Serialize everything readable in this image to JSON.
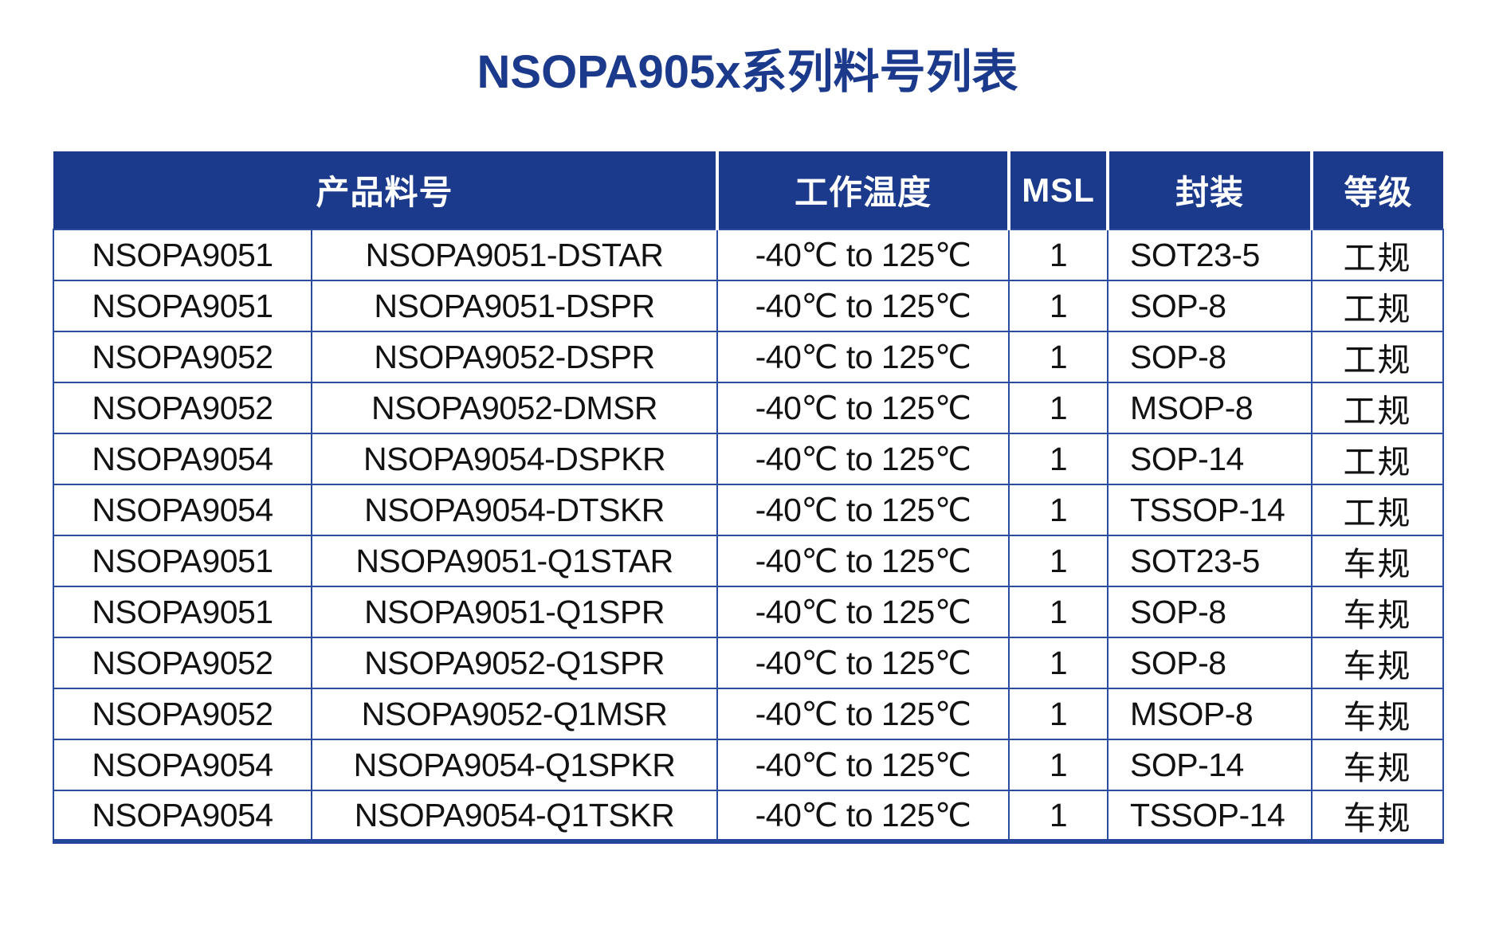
{
  "page": {
    "title": "NSOPA905x系列料号列表"
  },
  "colors": {
    "header_bg": "#1c3a8c",
    "border": "#2a4da0",
    "border_strong": "#24469c",
    "title": "#1c3a8c",
    "text": "#121212"
  },
  "table": {
    "headers": {
      "product": "产品料号",
      "temp": "工作温度",
      "msl": "MSL",
      "package": "封装",
      "grade": "等级"
    },
    "rows": [
      {
        "series": "NSOPA9051",
        "part": "NSOPA9051-DSTAR",
        "temp": "-40℃ to 125℃",
        "msl": "1",
        "package": "SOT23-5",
        "grade": "工规"
      },
      {
        "series": "NSOPA9051",
        "part": "NSOPA9051-DSPR",
        "temp": "-40℃ to 125℃",
        "msl": "1",
        "package": "SOP-8",
        "grade": "工规"
      },
      {
        "series": "NSOPA9052",
        "part": "NSOPA9052-DSPR",
        "temp": "-40℃ to 125℃",
        "msl": "1",
        "package": "SOP-8",
        "grade": "工规"
      },
      {
        "series": "NSOPA9052",
        "part": "NSOPA9052-DMSR",
        "temp": "-40℃ to 125℃",
        "msl": "1",
        "package": "MSOP-8",
        "grade": "工规"
      },
      {
        "series": "NSOPA9054",
        "part": "NSOPA9054-DSPKR",
        "temp": "-40℃ to 125℃",
        "msl": "1",
        "package": "SOP-14",
        "grade": "工规"
      },
      {
        "series": "NSOPA9054",
        "part": "NSOPA9054-DTSKR",
        "temp": "-40℃ to 125℃",
        "msl": "1",
        "package": "TSSOP-14",
        "grade": "工规"
      },
      {
        "series": "NSOPA9051",
        "part": "NSOPA9051-Q1STAR",
        "temp": "-40℃ to 125℃",
        "msl": "1",
        "package": "SOT23-5",
        "grade": "车规"
      },
      {
        "series": "NSOPA9051",
        "part": "NSOPA9051-Q1SPR",
        "temp": "-40℃ to 125℃",
        "msl": "1",
        "package": "SOP-8",
        "grade": "车规"
      },
      {
        "series": "NSOPA9052",
        "part": "NSOPA9052-Q1SPR",
        "temp": "-40℃ to 125℃",
        "msl": "1",
        "package": "SOP-8",
        "grade": "车规"
      },
      {
        "series": "NSOPA9052",
        "part": "NSOPA9052-Q1MSR",
        "temp": "-40℃ to 125℃",
        "msl": "1",
        "package": "MSOP-8",
        "grade": "车规"
      },
      {
        "series": "NSOPA9054",
        "part": "NSOPA9054-Q1SPKR",
        "temp": "-40℃ to 125℃",
        "msl": "1",
        "package": "SOP-14",
        "grade": "车规"
      },
      {
        "series": "NSOPA9054",
        "part": "NSOPA9054-Q1TSKR",
        "temp": "-40℃ to 125℃",
        "msl": "1",
        "package": "TSSOP-14",
        "grade": "车规"
      }
    ]
  }
}
